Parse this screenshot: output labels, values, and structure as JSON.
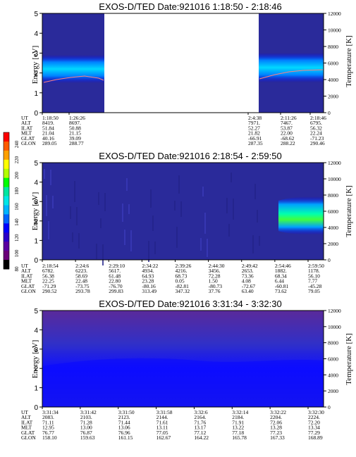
{
  "colorbar": {
    "label": "Second Harmonic Current",
    "ticks": [
      "240",
      "220",
      "200",
      "180",
      "160",
      "140",
      "120",
      "100",
      "80"
    ],
    "colors": [
      "#ff0000",
      "#ff5a00",
      "#ffa000",
      "#ffff00",
      "#b4ff00",
      "#00ff00",
      "#00e6a0",
      "#00e6e6",
      "#00b4ff",
      "#0064ff",
      "#0000ff",
      "#2a00c8",
      "#5a00a0",
      "#6a0078",
      "#000000"
    ]
  },
  "chart_data": [
    {
      "type": "heatmap",
      "title": "EXOS-D/TED   Date:921016  1:18:50 - 2:18:46",
      "ylabel": "Energy [eV]",
      "y2label": "Temperature [K]",
      "ylim": [
        0,
        5
      ],
      "y2lim": [
        0,
        12000
      ],
      "yticks": [
        "0",
        "1",
        "2",
        "3",
        "4",
        "5"
      ],
      "y2ticks": [
        "0",
        "2000",
        "4000",
        "6000",
        "8000",
        "10000",
        "12000"
      ],
      "rows": [
        "UT",
        "ALT",
        "ILAT",
        "MLT",
        "GLAT",
        "GLON"
      ],
      "columns": [
        [
          "1:18:50",
          "8419.",
          "51.84",
          "21.04",
          "40.16",
          "289.05"
        ],
        [
          "1:26:26",
          "8697.",
          "50.88",
          "21.15",
          "39.09",
          "288.77"
        ],
        [
          "2:4:38",
          "7971.",
          "52.27",
          "21.82",
          "-66.91",
          "287.35"
        ],
        [
          "2:11:26",
          "7467.",
          "53.87",
          "22.00",
          "-68.62",
          "288.22"
        ],
        [
          "2:18:46",
          "6795.",
          "56.32",
          "22.24",
          "-71.23",
          "290.46"
        ]
      ],
      "data_segments": [
        "1:18:50 - 1:26:26",
        "2:4:38 - 2:18:46"
      ],
      "band_energy_eV": [
        2.2,
        3.0
      ]
    },
    {
      "type": "heatmap",
      "title": "EXOS-D/TED   Date:921016  2:18:54 - 2:59:50",
      "ylabel": "Energy [eV]",
      "y2label": "Temperature [K]",
      "ylim": [
        0,
        5
      ],
      "y2lim": [
        0,
        12000
      ],
      "yticks": [
        "0",
        "1",
        "2",
        "3",
        "4",
        "5"
      ],
      "y2ticks": [
        "0",
        "2000",
        "4000",
        "6000",
        "8000",
        "10000",
        "12000"
      ],
      "rows": [
        "UT",
        "ALT",
        "ILAT",
        "MLT",
        "GLAT",
        "GLON"
      ],
      "columns": [
        [
          "2:18:54",
          "6782.",
          "56.38",
          "22.25",
          "-71.29",
          "290.52"
        ],
        [
          "2:24:6",
          "6223.",
          "58.69",
          "22.48",
          "-73.75",
          "293.78"
        ],
        [
          "2:29:10",
          "5617.",
          "61.48",
          "22.80",
          "-76.70",
          "299.83"
        ],
        [
          "2:34:22",
          "4934.",
          "64.93",
          "23.28",
          "-80.16",
          "313.49"
        ],
        [
          "2:39:26",
          "4216.",
          "68.73",
          "0.05",
          "-82.81",
          "347.32"
        ],
        [
          "2:44:30",
          "3456.",
          "72.28",
          "1.50",
          "-80.73",
          "37.76"
        ],
        [
          "2:49:42",
          "2653.",
          "73.36",
          "4.08",
          "-72.67",
          "63.40"
        ],
        [
          "2:54:46",
          "1882.",
          "68.34",
          "6.44",
          "-60.81",
          "73.62"
        ],
        [
          "2:59:50",
          "1178.",
          "56.10",
          "7.77",
          "-45.28",
          "79.05"
        ]
      ],
      "band_energy_eV": [
        1.5,
        2.6
      ]
    },
    {
      "type": "heatmap",
      "title": "EXOS-D/TED   Date:921016  3:31:34 - 3:32:30",
      "ylabel": "Energy [eV]",
      "y2label": "Temperature [K]",
      "ylim": [
        0,
        5
      ],
      "y2lim": [
        0,
        12000
      ],
      "yticks": [
        "0",
        "1",
        "2",
        "3",
        "4",
        "5"
      ],
      "y2ticks": [
        "0",
        "2000",
        "4000",
        "6000",
        "8000",
        "10000",
        "12000"
      ],
      "rows": [
        "UT",
        "ALT",
        "ILAT",
        "MLT",
        "GLAT",
        "GLON"
      ],
      "columns": [
        [
          "3:31:34",
          "2083.",
          "71.11",
          "12.95",
          "76.77",
          "158.10"
        ],
        [
          "3:31:42",
          "2103.",
          "71.28",
          "13.00",
          "76.87",
          "159.63"
        ],
        [
          "3:31:50",
          "2123.",
          "71.44",
          "13.06",
          "76.96",
          "161.15"
        ],
        [
          "3:31:58",
          "2144.",
          "71.61",
          "13.11",
          "77.05",
          "162.67"
        ],
        [
          "3:32:6",
          "2164.",
          "71.76",
          "13.17",
          "77.12",
          "164.22"
        ],
        [
          "3:32:14",
          "2184.",
          "71.91",
          "13.22",
          "77.18",
          "165.78"
        ],
        [
          "3:32:22",
          "2204.",
          "72.06",
          "13.28",
          "77.23",
          "167.33"
        ],
        [
          "3:32:30",
          "2224.",
          "72.20",
          "13.34",
          "77.29",
          "168.89"
        ]
      ]
    }
  ]
}
